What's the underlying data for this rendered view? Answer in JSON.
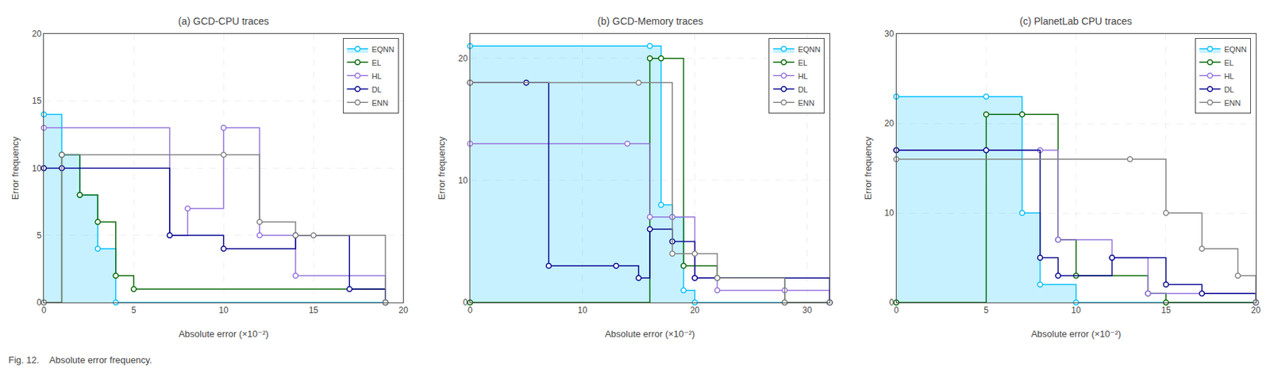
{
  "chart_data": [
    {
      "type": "line",
      "title": "(a) GCD-CPU traces",
      "xlabel": "Absolute error (×10⁻²)",
      "ylabel": "Error frequency",
      "xlim": [
        0,
        20
      ],
      "ylim": [
        0,
        20
      ],
      "xticks": [
        0,
        5,
        10,
        15,
        20
      ],
      "yticks": [
        0,
        5,
        10,
        15,
        20
      ],
      "grid": true,
      "legend": "upper right",
      "series": [
        {
          "name": "EQNN",
          "type": "area",
          "color": "#00BFFF",
          "line_style": "step",
          "marker": "circle-open",
          "x": [
            0,
            1,
            2,
            3,
            4,
            19
          ],
          "values": [
            14,
            11,
            8,
            4,
            0,
            0
          ]
        },
        {
          "name": "EL",
          "color": "#006400",
          "line_style": "step",
          "marker": "circle-open",
          "x": [
            0,
            1,
            2,
            3,
            4,
            5,
            19
          ],
          "values": [
            0,
            11,
            8,
            6,
            2,
            1,
            0
          ]
        },
        {
          "name": "HL",
          "color": "#9370DB",
          "line_style": "step",
          "marker": "circle-open",
          "x": [
            0,
            7,
            8,
            10,
            12,
            14,
            19
          ],
          "values": [
            13,
            5,
            7,
            13,
            5,
            2,
            0
          ]
        },
        {
          "name": "DL",
          "color": "#00008B",
          "line_style": "step",
          "marker": "circle-open",
          "x": [
            0,
            1,
            7,
            10,
            14,
            17,
            19
          ],
          "values": [
            10,
            10,
            5,
            4,
            5,
            1,
            0
          ]
        },
        {
          "name": "ENN",
          "color": "#808080",
          "line_style": "step",
          "marker": "circle-open",
          "x": [
            0,
            1,
            10,
            12,
            14,
            15,
            19
          ],
          "values": [
            0,
            11,
            11,
            6,
            5,
            5,
            0
          ]
        }
      ]
    },
    {
      "type": "line",
      "title": "(b) GCD-Memory traces",
      "xlabel": "Absolute error (×10⁻²)",
      "ylabel": "Error frequency",
      "xlim": [
        0,
        32
      ],
      "ylim": [
        0,
        22
      ],
      "xticks": [
        0,
        10,
        20,
        30
      ],
      "yticks": [
        0,
        10,
        20
      ],
      "grid": true,
      "legend": "upper right",
      "series": [
        {
          "name": "EQNN",
          "type": "area",
          "color": "#00BFFF",
          "line_style": "step",
          "marker": "circle-open",
          "x": [
            0,
            16,
            17,
            18,
            19,
            20,
            32
          ],
          "values": [
            21,
            21,
            8,
            7,
            1,
            0,
            0
          ]
        },
        {
          "name": "EL",
          "color": "#006400",
          "line_style": "step",
          "marker": "circle-open",
          "x": [
            0,
            16,
            17,
            19,
            22,
            28,
            32
          ],
          "values": [
            0,
            20,
            20,
            3,
            2,
            0,
            0
          ]
        },
        {
          "name": "HL",
          "color": "#9370DB",
          "line_style": "step",
          "marker": "circle-open",
          "x": [
            0,
            14,
            16,
            18,
            20,
            22,
            28,
            32
          ],
          "values": [
            13,
            13,
            7,
            7,
            2,
            1,
            1,
            0
          ]
        },
        {
          "name": "DL",
          "color": "#00008B",
          "line_style": "step",
          "marker": "circle-open",
          "x": [
            0,
            5,
            7,
            13,
            15,
            16,
            18,
            20,
            32
          ],
          "values": [
            18,
            18,
            3,
            3,
            2,
            6,
            5,
            2,
            0
          ]
        },
        {
          "name": "ENN",
          "color": "#808080",
          "line_style": "step",
          "marker": "circle-open",
          "x": [
            0,
            15,
            18,
            20,
            22,
            28,
            32
          ],
          "values": [
            18,
            18,
            4,
            4,
            2,
            0,
            0
          ]
        }
      ]
    },
    {
      "type": "line",
      "title": "(c) PlanetLab CPU traces",
      "xlabel": "Absolute error (×10⁻²)",
      "ylabel": "Error frequency",
      "xlim": [
        0,
        20
      ],
      "ylim": [
        0,
        30
      ],
      "xticks": [
        0,
        5,
        10,
        15,
        20
      ],
      "yticks": [
        0,
        10,
        20,
        30
      ],
      "grid": true,
      "legend": "upper right",
      "series": [
        {
          "name": "EQNN",
          "type": "area",
          "color": "#00BFFF",
          "line_style": "step",
          "marker": "circle-open",
          "x": [
            0,
            5,
            7,
            8,
            10,
            20
          ],
          "values": [
            23,
            23,
            10,
            2,
            0,
            0
          ]
        },
        {
          "name": "EL",
          "color": "#006400",
          "line_style": "step",
          "marker": "circle-open",
          "x": [
            0,
            5,
            7,
            9,
            10,
            14,
            15,
            20
          ],
          "values": [
            0,
            21,
            21,
            7,
            3,
            1,
            0,
            0
          ]
        },
        {
          "name": "HL",
          "color": "#9370DB",
          "line_style": "step",
          "marker": "circle-open",
          "x": [
            0,
            8,
            9,
            12,
            14,
            20
          ],
          "values": [
            17,
            17,
            7,
            5,
            1,
            0
          ]
        },
        {
          "name": "DL",
          "color": "#00008B",
          "line_style": "step",
          "marker": "circle-open",
          "x": [
            0,
            5,
            8,
            9,
            12,
            15,
            17,
            20
          ],
          "values": [
            17,
            17,
            5,
            3,
            5,
            2,
            1,
            0
          ]
        },
        {
          "name": "ENN",
          "color": "#808080",
          "line_style": "step",
          "marker": "circle-open",
          "x": [
            0,
            13,
            15,
            17,
            19,
            20
          ],
          "values": [
            16,
            16,
            10,
            6,
            3,
            0
          ]
        }
      ]
    }
  ],
  "caption": "Fig. 12.    Absolute error frequency."
}
